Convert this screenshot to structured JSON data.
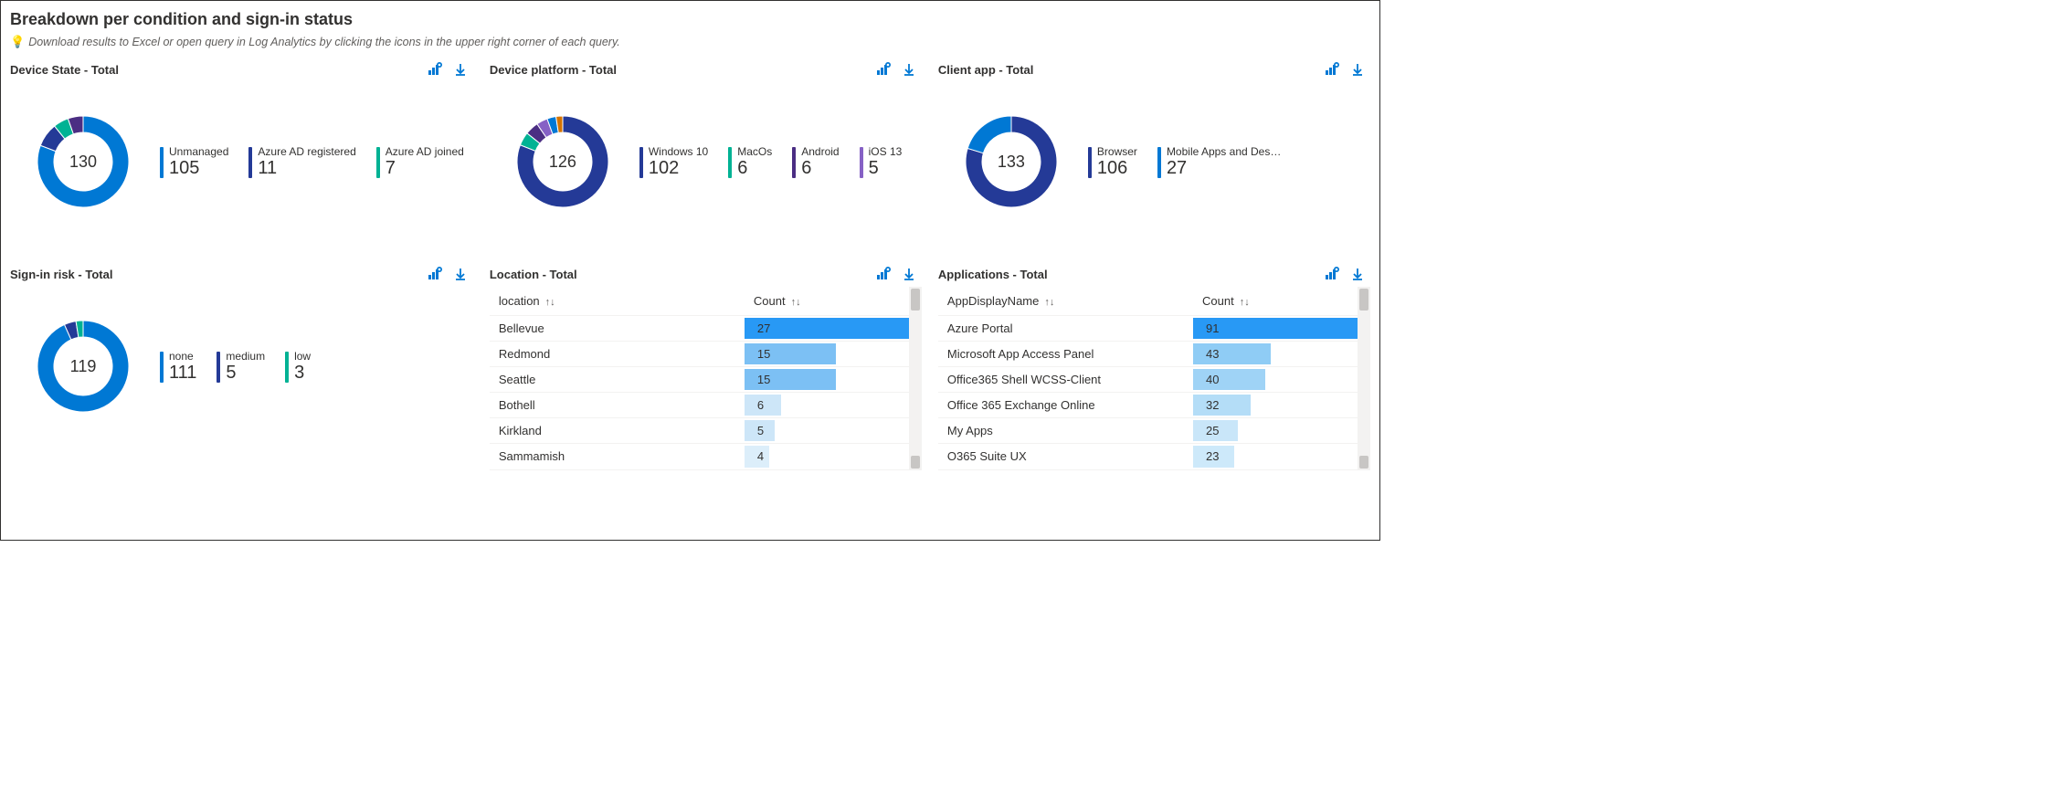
{
  "header": {
    "title": "Breakdown per condition and sign-in status",
    "hint_icon": "💡",
    "hint": "Download results to Excel or open query in Log Analytics by clicking the icons in the upper right corner of each query."
  },
  "palette": {
    "blue": "#0078d4",
    "navy": "#243a97",
    "teal": "#00b294",
    "purple": "#8661c5",
    "orange": "#d47300",
    "dark": "#373277"
  },
  "panels": {
    "device_state": {
      "title": "Device State - Total",
      "total": 130,
      "items": [
        {
          "label": "Unmanaged",
          "value": 105,
          "color": "#0078d4"
        },
        {
          "label": "Azure AD registered",
          "value": 11,
          "color": "#243a97"
        },
        {
          "label": "Azure AD joined",
          "value": 7,
          "color": "#00b294"
        }
      ],
      "extra_slices": [
        {
          "value": 7,
          "color": "#4b2e83"
        }
      ]
    },
    "device_platform": {
      "title": "Device platform - Total",
      "total": 126,
      "items": [
        {
          "label": "Windows 10",
          "value": 102,
          "color": "#243a97"
        },
        {
          "label": "MacOs",
          "value": 6,
          "color": "#00b294"
        },
        {
          "label": "Android",
          "value": 6,
          "color": "#4b2e83"
        },
        {
          "label": "iOS 13",
          "value": 5,
          "color": "#8661c5"
        }
      ],
      "extra_slices": [
        {
          "value": 4,
          "color": "#0078d4"
        },
        {
          "value": 3,
          "color": "#d47300"
        }
      ]
    },
    "client_app": {
      "title": "Client app - Total",
      "total": 133,
      "items": [
        {
          "label": "Browser",
          "value": 106,
          "color": "#243a97"
        },
        {
          "label": "Mobile Apps and Desktop...",
          "value": 27,
          "color": "#0078d4"
        }
      ],
      "extra_slices": []
    },
    "signin_risk": {
      "title": "Sign-in risk - Total",
      "total": 119,
      "items": [
        {
          "label": "none",
          "value": 111,
          "color": "#0078d4"
        },
        {
          "label": "medium",
          "value": 5,
          "color": "#243a97"
        },
        {
          "label": "low",
          "value": 3,
          "color": "#00b294"
        }
      ],
      "extra_slices": []
    },
    "location": {
      "title": "Location - Total",
      "columns": [
        "location",
        "Count"
      ],
      "max": 27,
      "bar_color_scale": [
        "#2899f5",
        "#7cc0f4",
        "#7cc0f4",
        "#cde6f8",
        "#cde6f8",
        "#dceefa"
      ],
      "rows": [
        {
          "label": "Bellevue",
          "count": 27
        },
        {
          "label": "Redmond",
          "count": 15
        },
        {
          "label": "Seattle",
          "count": 15
        },
        {
          "label": "Bothell",
          "count": 6
        },
        {
          "label": "Kirkland",
          "count": 5
        },
        {
          "label": "Sammamish",
          "count": 4
        }
      ]
    },
    "applications": {
      "title": "Applications - Total",
      "columns": [
        "AppDisplayName",
        "Count"
      ],
      "max": 91,
      "bar_color_scale": [
        "#2899f5",
        "#8fccf5",
        "#9fd3f6",
        "#b4ddf7",
        "#c9e6f9",
        "#cde9fa"
      ],
      "rows": [
        {
          "label": "Azure Portal",
          "count": 91
        },
        {
          "label": "Microsoft App Access Panel",
          "count": 43
        },
        {
          "label": "Office365 Shell WCSS-Client",
          "count": 40
        },
        {
          "label": "Office 365 Exchange Online",
          "count": 32
        },
        {
          "label": "My Apps",
          "count": 25
        },
        {
          "label": "O365 Suite UX",
          "count": 23
        }
      ]
    }
  }
}
